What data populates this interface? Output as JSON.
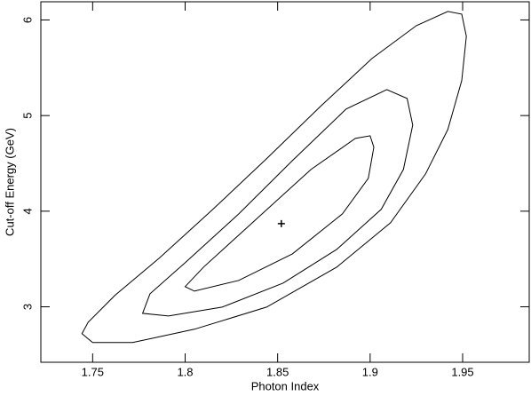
{
  "chart_data": {
    "type": "contour",
    "x_label": "Photon Index",
    "y_label": "Cut-off Energy (GeV)",
    "xlim": [
      1.722,
      1.986
    ],
    "ylim": [
      2.42,
      6.19
    ],
    "xticks": [
      1.75,
      1.8,
      1.85,
      1.9,
      1.95
    ],
    "yticks": [
      3,
      4,
      5,
      6
    ],
    "color": "#000000",
    "series": [
      {
        "x": [
          1.7442,
          1.7476,
          1.762,
          1.786,
          1.815,
          1.844,
          1.8726,
          1.901,
          1.925,
          1.942,
          1.9495,
          1.952,
          1.9495,
          1.942,
          1.93,
          1.911,
          1.882,
          1.844,
          1.805,
          1.7716,
          1.75
        ],
        "y": [
          2.719,
          2.839,
          3.118,
          3.508,
          4.019,
          4.548,
          5.086,
          5.597,
          5.94,
          6.089,
          6.061,
          5.829,
          5.365,
          4.854,
          4.39,
          3.879,
          3.415,
          2.997,
          2.765,
          2.626,
          2.626
        ]
      },
      {
        "x": [
          1.777,
          1.781,
          1.8,
          1.829,
          1.858,
          1.887,
          1.909,
          1.92,
          1.923,
          1.918,
          1.906,
          1.882,
          1.853,
          1.82,
          1.791
        ],
        "y": [
          2.932,
          3.136,
          3.461,
          3.972,
          4.529,
          5.068,
          5.272,
          5.179,
          4.9,
          4.436,
          4.019,
          3.601,
          3.248,
          2.997,
          2.904
        ]
      },
      {
        "x": [
          1.8,
          1.81,
          1.839,
          1.868,
          1.892,
          1.9,
          1.902,
          1.899,
          1.885,
          1.858,
          1.829,
          1.805
        ],
        "y": [
          3.211,
          3.415,
          3.926,
          4.436,
          4.761,
          4.789,
          4.669,
          4.344,
          3.972,
          3.554,
          3.276,
          3.164
        ]
      }
    ],
    "best_fit": {
      "x": 1.852,
      "y": 3.87
    }
  }
}
